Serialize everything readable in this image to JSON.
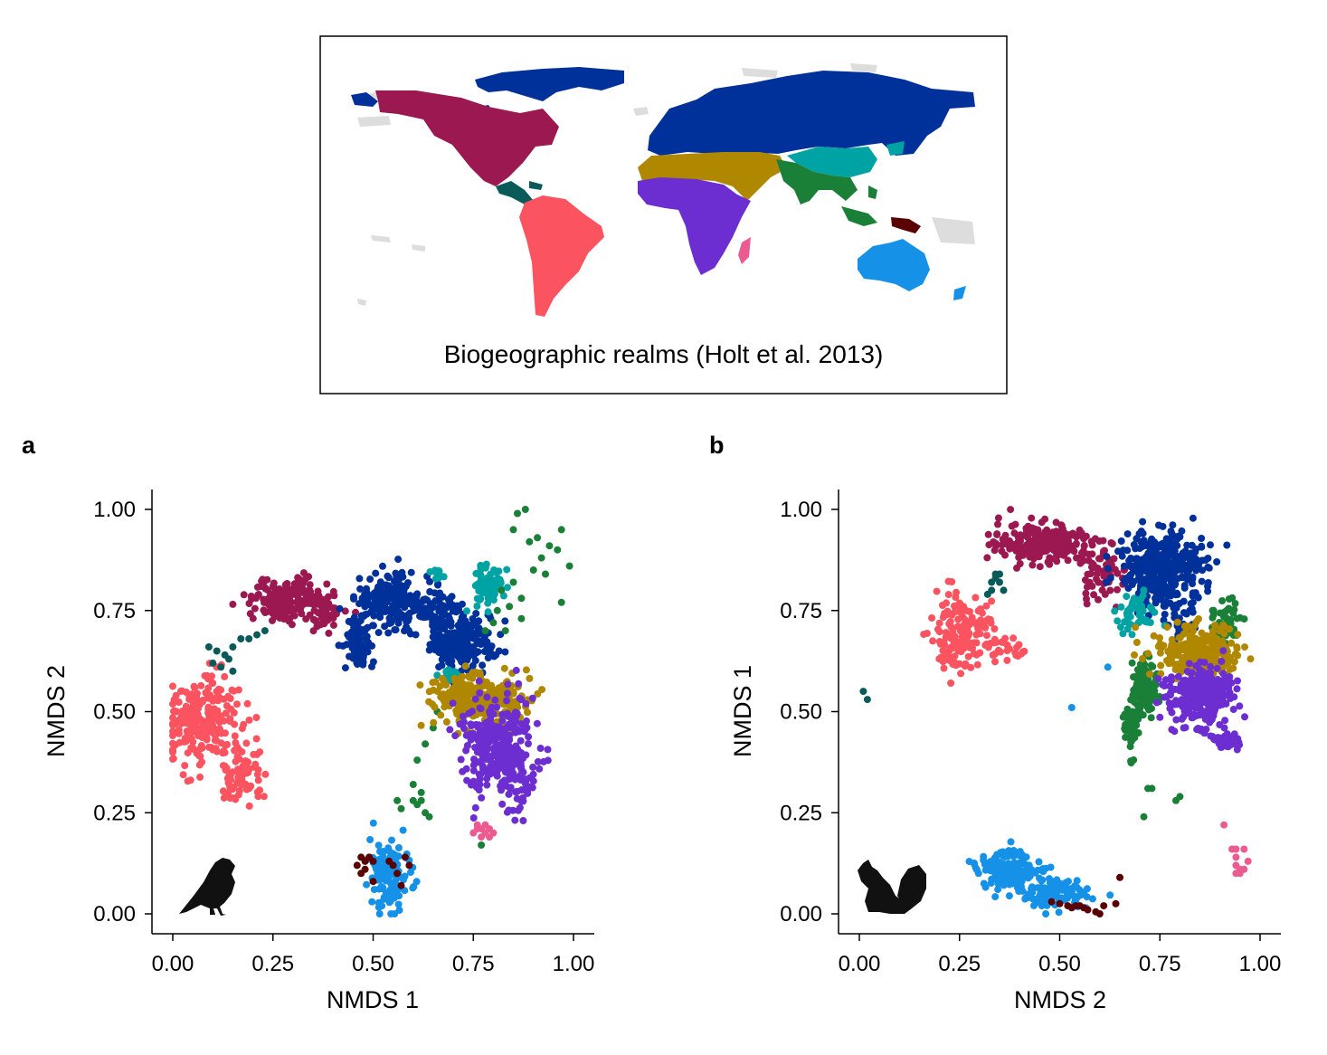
{
  "map": {
    "caption": "Biogeographic realms (Holt et al. 2013)",
    "realms": [
      {
        "key": "north",
        "color": "#00309a"
      },
      {
        "key": "nearctic",
        "color": "#9b1850"
      },
      {
        "key": "panama",
        "color": "#0a5a5a"
      },
      {
        "key": "neotropical",
        "color": "#fb535f"
      },
      {
        "key": "saharo_arabian",
        "color": "#b08800"
      },
      {
        "key": "afrotropical",
        "color": "#6c2ed0"
      },
      {
        "key": "madagascar",
        "color": "#ec5a92"
      },
      {
        "key": "sino_japanese",
        "color": "#00a3a3"
      },
      {
        "key": "oriental",
        "color": "#1a8038"
      },
      {
        "key": "oceanina",
        "color": "#5a0000"
      },
      {
        "key": "australian",
        "color": "#1592e8"
      },
      {
        "key": "unassigned",
        "color": "#dddddd"
      }
    ]
  },
  "chart_data": [
    {
      "type": "scatter",
      "panel_label": "a",
      "xlabel": "NMDS 1",
      "ylabel": "NMDS 2",
      "xlim": [
        0,
        1
      ],
      "ylim": [
        0,
        1
      ],
      "xticks": [
        "0.00",
        "0.25",
        "0.50",
        "0.75",
        "1.00"
      ],
      "yticks": [
        "0.00",
        "0.25",
        "0.50",
        "0.75",
        "1.00"
      ],
      "silhouette": "bird-icon",
      "series": [
        {
          "color": "#fb535f",
          "clusters": [
            {
              "cx": 0.07,
              "cy": 0.47,
              "sx": 0.045,
              "sy": 0.05,
              "n": 220
            },
            {
              "cx": 0.17,
              "cy": 0.34,
              "sx": 0.025,
              "sy": 0.035,
              "n": 70
            },
            {
              "cx": 0.1,
              "cy": 0.59,
              "sx": 0.02,
              "sy": 0.02,
              "n": 12
            }
          ]
        },
        {
          "color": "#0a5a5a",
          "points": [
            [
              0.09,
              0.66
            ],
            [
              0.11,
              0.65
            ],
            [
              0.13,
              0.64
            ],
            [
              0.15,
              0.66
            ],
            [
              0.17,
              0.68
            ],
            [
              0.19,
              0.68
            ],
            [
              0.21,
              0.69
            ],
            [
              0.23,
              0.7
            ],
            [
              0.15,
              0.6
            ],
            [
              0.1,
              0.62
            ],
            [
              0.14,
              0.63
            ],
            [
              0.12,
              0.61
            ]
          ]
        },
        {
          "color": "#9b1850",
          "clusters": [
            {
              "cx": 0.3,
              "cy": 0.78,
              "sx": 0.05,
              "sy": 0.025,
              "n": 200
            },
            {
              "cx": 0.38,
              "cy": 0.73,
              "sx": 0.02,
              "sy": 0.02,
              "n": 30
            }
          ]
        },
        {
          "color": "#00309a",
          "clusters": [
            {
              "cx": 0.46,
              "cy": 0.67,
              "sx": 0.02,
              "sy": 0.03,
              "n": 80
            },
            {
              "cx": 0.56,
              "cy": 0.77,
              "sx": 0.05,
              "sy": 0.035,
              "n": 200
            },
            {
              "cx": 0.72,
              "cy": 0.67,
              "sx": 0.04,
              "sy": 0.04,
              "n": 230
            },
            {
              "cx": 0.66,
              "cy": 0.75,
              "sx": 0.03,
              "sy": 0.03,
              "n": 60
            }
          ]
        },
        {
          "color": "#00a3a3",
          "clusters": [
            {
              "cx": 0.79,
              "cy": 0.81,
              "sx": 0.02,
              "sy": 0.025,
              "n": 80
            },
            {
              "cx": 0.69,
              "cy": 0.59,
              "sx": 0.02,
              "sy": 0.01,
              "n": 20
            },
            {
              "cx": 0.66,
              "cy": 0.84,
              "sx": 0.015,
              "sy": 0.01,
              "n": 10
            }
          ]
        },
        {
          "color": "#1a8038",
          "points": [
            [
              0.86,
              0.99
            ],
            [
              0.88,
              1.0
            ],
            [
              0.91,
              0.93
            ],
            [
              0.94,
              0.91
            ],
            [
              0.97,
              0.95
            ],
            [
              0.99,
              0.86
            ],
            [
              0.92,
              0.88
            ],
            [
              0.96,
              0.9
            ],
            [
              0.97,
              0.77
            ],
            [
              0.85,
              0.95
            ],
            [
              0.89,
              0.92
            ],
            [
              0.82,
              0.8
            ],
            [
              0.84,
              0.76
            ],
            [
              0.87,
              0.78
            ],
            [
              0.9,
              0.85
            ],
            [
              0.93,
              0.84
            ],
            [
              0.6,
              0.28
            ],
            [
              0.61,
              0.27
            ],
            [
              0.62,
              0.3
            ],
            [
              0.63,
              0.25
            ],
            [
              0.57,
              0.26
            ],
            [
              0.56,
              0.28
            ],
            [
              0.64,
              0.24
            ],
            [
              0.6,
              0.32
            ],
            [
              0.62,
              0.28
            ],
            [
              0.77,
              0.17
            ],
            [
              0.61,
              0.38
            ],
            [
              0.63,
              0.42
            ],
            [
              0.66,
              0.5
            ],
            [
              0.65,
              0.46
            ],
            [
              0.8,
              0.72
            ],
            [
              0.78,
              0.7
            ],
            [
              0.83,
              0.7
            ],
            [
              0.81,
              0.75
            ],
            [
              0.85,
              0.82
            ],
            [
              0.87,
              0.73
            ]
          ]
        },
        {
          "color": "#b08800",
          "clusters": [
            {
              "cx": 0.76,
              "cy": 0.53,
              "sx": 0.06,
              "sy": 0.03,
              "n": 260
            }
          ]
        },
        {
          "color": "#6c2ed0",
          "clusters": [
            {
              "cx": 0.81,
              "cy": 0.42,
              "sx": 0.05,
              "sy": 0.06,
              "n": 300
            },
            {
              "cx": 0.87,
              "cy": 0.3,
              "sx": 0.015,
              "sy": 0.02,
              "n": 20
            }
          ]
        },
        {
          "color": "#ec5a92",
          "points": [
            [
              0.76,
              0.22
            ],
            [
              0.77,
              0.21
            ],
            [
              0.78,
              0.2
            ],
            [
              0.79,
              0.21
            ],
            [
              0.75,
              0.2
            ],
            [
              0.77,
              0.19
            ],
            [
              0.78,
              0.22
            ],
            [
              0.8,
              0.2
            ],
            [
              0.76,
              0.21
            ],
            [
              0.79,
              0.19
            ]
          ]
        },
        {
          "color": "#1592e8",
          "clusters": [
            {
              "cx": 0.54,
              "cy": 0.1,
              "sx": 0.025,
              "sy": 0.045,
              "n": 130
            }
          ]
        },
        {
          "color": "#5a0000",
          "points": [
            [
              0.47,
              0.14
            ],
            [
              0.48,
              0.13
            ],
            [
              0.49,
              0.14
            ],
            [
              0.5,
              0.13
            ],
            [
              0.46,
              0.12
            ],
            [
              0.48,
              0.11
            ],
            [
              0.47,
              0.1
            ],
            [
              0.5,
              0.08
            ],
            [
              0.58,
              0.14
            ],
            [
              0.59,
              0.12
            ],
            [
              0.55,
              0.12
            ],
            [
              0.54,
              0.13
            ],
            [
              0.56,
              0.1
            ],
            [
              0.57,
              0.07
            ]
          ]
        }
      ]
    },
    {
      "type": "scatter",
      "panel_label": "b",
      "xlabel": "NMDS 2",
      "ylabel": "NMDS 1",
      "xlim": [
        0,
        1
      ],
      "ylim": [
        0,
        1
      ],
      "xticks": [
        "0.00",
        "0.25",
        "0.50",
        "0.75",
        "1.00"
      ],
      "yticks": [
        "0.00",
        "0.25",
        "0.50",
        "0.75",
        "1.00"
      ],
      "silhouette": "squirrel-icon",
      "series": [
        {
          "color": "#fb535f",
          "clusters": [
            {
              "cx": 0.26,
              "cy": 0.69,
              "sx": 0.04,
              "sy": 0.05,
              "n": 160
            },
            {
              "cx": 0.38,
              "cy": 0.65,
              "sx": 0.03,
              "sy": 0.015,
              "n": 20
            }
          ]
        },
        {
          "color": "#0a5a5a",
          "points": [
            [
              0.01,
              0.55
            ],
            [
              0.02,
              0.53
            ],
            [
              0.33,
              0.82
            ],
            [
              0.34,
              0.83
            ],
            [
              0.35,
              0.82
            ],
            [
              0.33,
              0.8
            ],
            [
              0.36,
              0.8
            ],
            [
              0.32,
              0.79
            ],
            [
              0.34,
              0.84
            ],
            [
              0.35,
              0.84
            ]
          ]
        },
        {
          "color": "#9b1850",
          "clusters": [
            {
              "cx": 0.45,
              "cy": 0.92,
              "sx": 0.06,
              "sy": 0.025,
              "n": 220
            },
            {
              "cx": 0.6,
              "cy": 0.86,
              "sx": 0.025,
              "sy": 0.04,
              "n": 70
            }
          ]
        },
        {
          "color": "#00309a",
          "clusters": [
            {
              "cx": 0.76,
              "cy": 0.85,
              "sx": 0.05,
              "sy": 0.045,
              "n": 380
            },
            {
              "cx": 0.8,
              "cy": 0.73,
              "sx": 0.02,
              "sy": 0.02,
              "n": 30
            }
          ]
        },
        {
          "color": "#00a3a3",
          "clusters": [
            {
              "cx": 0.7,
              "cy": 0.74,
              "sx": 0.025,
              "sy": 0.025,
              "n": 50
            }
          ]
        },
        {
          "color": "#1a8038",
          "clusters": [
            {
              "cx": 0.71,
              "cy": 0.56,
              "sx": 0.015,
              "sy": 0.03,
              "n": 120
            },
            {
              "cx": 0.68,
              "cy": 0.46,
              "sx": 0.008,
              "sy": 0.03,
              "n": 50
            },
            {
              "cx": 0.91,
              "cy": 0.72,
              "sx": 0.02,
              "sy": 0.03,
              "n": 50
            }
          ],
          "points": [
            [
              0.73,
              0.31
            ],
            [
              0.79,
              0.28
            ],
            [
              0.8,
              0.29
            ],
            [
              0.71,
              0.24
            ],
            [
              0.72,
              0.31
            ]
          ]
        },
        {
          "color": "#b08800",
          "clusters": [
            {
              "cx": 0.84,
              "cy": 0.65,
              "sx": 0.05,
              "sy": 0.03,
              "n": 260
            }
          ]
        },
        {
          "color": "#6c2ed0",
          "clusters": [
            {
              "cx": 0.85,
              "cy": 0.54,
              "sx": 0.04,
              "sy": 0.035,
              "n": 260
            },
            {
              "cx": 0.92,
              "cy": 0.43,
              "sx": 0.015,
              "sy": 0.012,
              "n": 40
            }
          ]
        },
        {
          "color": "#ec5a92",
          "points": [
            [
              0.91,
              0.22
            ],
            [
              0.93,
              0.16
            ],
            [
              0.94,
              0.14
            ],
            [
              0.94,
              0.12
            ],
            [
              0.95,
              0.11
            ],
            [
              0.94,
              0.1
            ],
            [
              0.95,
              0.1
            ],
            [
              0.96,
              0.11
            ],
            [
              0.97,
              0.13
            ],
            [
              0.94,
              0.16
            ],
            [
              0.96,
              0.16
            ]
          ]
        },
        {
          "color": "#1592e8",
          "clusters": [
            {
              "cx": 0.38,
              "cy": 0.11,
              "sx": 0.04,
              "sy": 0.025,
              "n": 150
            },
            {
              "cx": 0.5,
              "cy": 0.05,
              "sx": 0.04,
              "sy": 0.018,
              "n": 90
            }
          ],
          "points": [
            [
              0.53,
              0.51
            ],
            [
              0.62,
              0.61
            ]
          ]
        },
        {
          "color": "#5a0000",
          "points": [
            [
              0.48,
              0.03
            ],
            [
              0.5,
              0.025
            ],
            [
              0.52,
              0.02
            ],
            [
              0.54,
              0.02
            ],
            [
              0.56,
              0.015
            ],
            [
              0.57,
              0.01
            ],
            [
              0.59,
              0.005
            ],
            [
              0.6,
              0.0
            ],
            [
              0.61,
              0.02
            ],
            [
              0.64,
              0.025
            ],
            [
              0.65,
              0.09
            ],
            [
              0.55,
              0.02
            ],
            [
              0.53,
              0.015
            ]
          ]
        }
      ]
    }
  ]
}
